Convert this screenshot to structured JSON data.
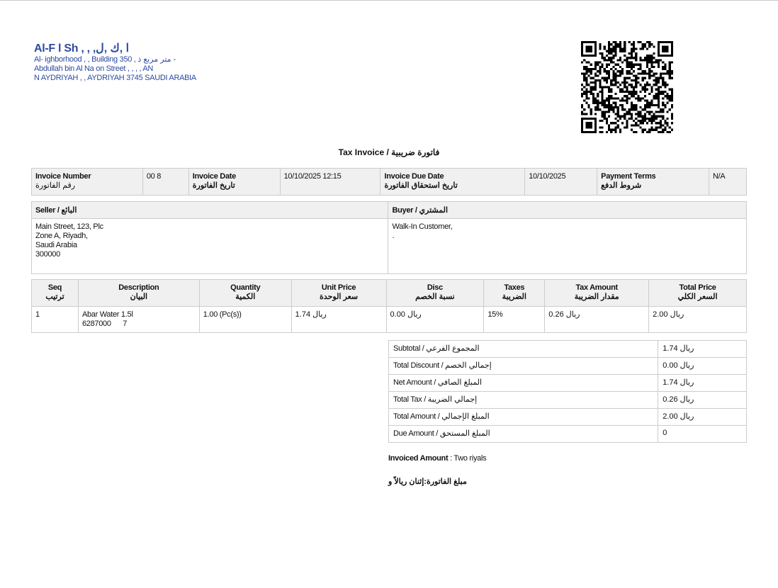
{
  "company": {
    "name": "Al-F   l Sh  ,  ,  ,ا ,ك ,ل",
    "lines": [
      "Al-        ighborhood  ,      ,    Building 350 , متر مربع ذ -",
      "Abdullah bin Al Na     on Street ,    ,  ,        ,   AN",
      "N  AYDRIYAH  ,    ,  AYDRIYAH 3745  SAUDI ARABIA"
    ]
  },
  "title": "Tax Invoice / فاتورة ضريبية",
  "info": {
    "invoice_number_label": "Invoice Number",
    "invoice_number_label_ar": "رقم الفاتورة",
    "invoice_number": "00   8",
    "invoice_date_label": "Invoice Date",
    "invoice_date_label_ar": "تاريخ الفاتورة",
    "invoice_date": "10/10/2025 12:15",
    "due_date_label": "Invoice Due Date",
    "due_date_label_ar": "تاريخ استحقاق الفاتورة",
    "due_date": "10/10/2025",
    "payment_terms_label": "Payment Terms",
    "payment_terms_label_ar": "شروط الدفع",
    "payment_terms": "N/A"
  },
  "seller": {
    "label": "Seller / البائع",
    "lines": [
      "    ",
      "Main Street, 123, Plc",
      "Zone A, Riyadh,",
      "Saudi Arabia",
      "300000"
    ]
  },
  "buyer": {
    "label": "Buyer / المشتري",
    "lines": [
      "Walk-In Customer,",
      "."
    ]
  },
  "items": {
    "headers": [
      {
        "en": "Seq",
        "ar": "ترتيب"
      },
      {
        "en": "Description",
        "ar": "البيان"
      },
      {
        "en": "Quantity",
        "ar": "الكمية"
      },
      {
        "en": "Unit Price",
        "ar": "سعر الوحدة"
      },
      {
        "en": "Disc",
        "ar": "نسبة الخصم"
      },
      {
        "en": "Taxes",
        "ar": "الضريبة"
      },
      {
        "en": "Tax Amount",
        "ar": "مقدار الضريبة"
      },
      {
        "en": "Total Price",
        "ar": "السعر الكلي"
      }
    ],
    "rows": [
      {
        "seq": "1",
        "description": "Abar Water 1.5l",
        "barcode": "6287000      7",
        "quantity": "1.00 (Pc(s))",
        "unit_price": "ريال 1.74",
        "disc": "ريال 0.00",
        "taxes": "15%",
        "tax_amount": "ريال 0.26",
        "total": "ريال 2.00"
      }
    ]
  },
  "totals": [
    {
      "label": "Subtotal / المجموع الفرعي",
      "value": "ريال 1.74"
    },
    {
      "label": "Total Discount / إجمالي الخصم",
      "value": "ريال 0.00"
    },
    {
      "label": "Net Amount / المبلغ الصافي",
      "value": "ريال 1.74"
    },
    {
      "label": "Total Tax / إجمالي الضريبة",
      "value": "ريال 0.26"
    },
    {
      "label": "Total Amount / المبلغ الإجمالي",
      "value": "ريال 2.00"
    },
    {
      "label": "Due Amount / المبلغ المستحق",
      "value": "0"
    }
  ],
  "invoiced": {
    "label": "Invoiced Amount",
    "value": "Two riyals",
    "ar_label": "مبلغ الفاتورة:",
    "ar_value": "إثنان ريالاً و"
  },
  "colors": {
    "company": "#2c4aa3",
    "header_bg": "#f0f0f0",
    "border": "#cccccc"
  }
}
